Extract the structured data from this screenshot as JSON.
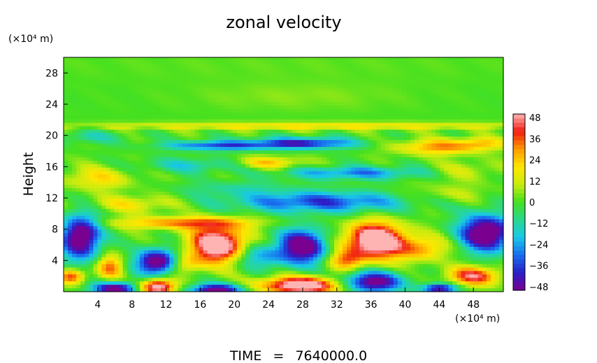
{
  "chart_data": {
    "type": "heatmap",
    "title": "zonal velocity",
    "ylabel": "Height",
    "xunit": "(×10⁴ m)",
    "yunit": "(×10⁴ m)",
    "xlim": [
      0,
      51.5
    ],
    "ylim": [
      0,
      30
    ],
    "xticks": [
      4,
      8,
      12,
      16,
      20,
      24,
      28,
      32,
      36,
      40,
      44,
      48
    ],
    "yticks": [
      4,
      8,
      12,
      16,
      20,
      24,
      28
    ],
    "colorbar": {
      "range": [
        -50,
        50
      ],
      "ticks": [
        48,
        36,
        24,
        12,
        0,
        -12,
        -24,
        -36,
        -48
      ],
      "colors": [
        "#7a0090",
        "#2a1fc8",
        "#1a6ef0",
        "#18c8e8",
        "#28d890",
        "#44e020",
        "#c8ec10",
        "#ffe600",
        "#ff9a00",
        "#f01c10",
        "#ffb4b4"
      ]
    },
    "features": [
      {
        "x": 25,
        "y": 29,
        "sx": 30,
        "sy": 2.0,
        "v": 2
      },
      {
        "x": 27,
        "y": 25,
        "sx": 12,
        "sy": 1.8,
        "v": 5
      },
      {
        "x": 30,
        "y": 21.2,
        "sx": 28,
        "sy": 0.5,
        "v": 20
      },
      {
        "x": 28,
        "y": 19.0,
        "sx": 6,
        "sy": 0.7,
        "v": -42
      },
      {
        "x": 18,
        "y": 18.7,
        "sx": 6,
        "sy": 0.6,
        "v": -34
      },
      {
        "x": 3,
        "y": 19.8,
        "sx": 4,
        "sy": 0.8,
        "v": -12
      },
      {
        "x": 44,
        "y": 18.5,
        "sx": 5,
        "sy": 1.0,
        "v": 30
      },
      {
        "x": 49,
        "y": 19,
        "sx": 3,
        "sy": 0.8,
        "v": 18
      },
      {
        "x": 24,
        "y": 16.5,
        "sx": 4,
        "sy": 0.8,
        "v": 24
      },
      {
        "x": 34,
        "y": 15.2,
        "sx": 8,
        "sy": 0.8,
        "v": -28
      },
      {
        "x": 15,
        "y": 16.2,
        "sx": 6,
        "sy": 0.9,
        "v": -16
      },
      {
        "x": 47,
        "y": 15.5,
        "sx": 4,
        "sy": 1.2,
        "v": 12
      },
      {
        "x": 4,
        "y": 14.5,
        "sx": 4,
        "sy": 1.5,
        "v": 20
      },
      {
        "x": 30,
        "y": 11.5,
        "sx": 10,
        "sy": 1.3,
        "v": -36
      },
      {
        "x": 8,
        "y": 11.2,
        "sx": 5,
        "sy": 1.1,
        "v": 18
      },
      {
        "x": 45,
        "y": 12.5,
        "sx": 5,
        "sy": 1.3,
        "v": 10
      },
      {
        "x": 20,
        "y": 13.2,
        "sx": 6,
        "sy": 1.0,
        "v": -10
      },
      {
        "x": 14,
        "y": 8.8,
        "sx": 8,
        "sy": 0.8,
        "v": 32
      },
      {
        "x": 2,
        "y": 7,
        "sx": 2.2,
        "sy": 2.8,
        "v": -62
      },
      {
        "x": 18,
        "y": 6,
        "sx": 3.2,
        "sy": 2.3,
        "v": 66
      },
      {
        "x": 11,
        "y": 3.8,
        "sx": 2.4,
        "sy": 1.6,
        "v": -60
      },
      {
        "x": 28,
        "y": 5.8,
        "sx": 2.8,
        "sy": 2.2,
        "v": -58
      },
      {
        "x": 36.5,
        "y": 6.5,
        "sx": 3.5,
        "sy": 2.3,
        "v": 68
      },
      {
        "x": 49.5,
        "y": 7.5,
        "sx": 3.0,
        "sy": 2.3,
        "v": -64
      },
      {
        "x": 42,
        "y": 5.5,
        "sx": 3,
        "sy": 1.6,
        "v": 26
      },
      {
        "x": 5.5,
        "y": 3.2,
        "sx": 1.5,
        "sy": 1.5,
        "v": 34
      },
      {
        "x": 11,
        "y": 0.6,
        "sx": 2.0,
        "sy": 1.0,
        "v": 58
      },
      {
        "x": 6,
        "y": 0.4,
        "sx": 2.5,
        "sy": 0.8,
        "v": -56
      },
      {
        "x": 18,
        "y": 0.2,
        "sx": 3,
        "sy": 0.8,
        "v": -56
      },
      {
        "x": 28,
        "y": 0.8,
        "sx": 5,
        "sy": 1.1,
        "v": 62
      },
      {
        "x": 36,
        "y": 1.2,
        "sx": 3.5,
        "sy": 1.3,
        "v": -58
      },
      {
        "x": 48,
        "y": 2.0,
        "sx": 3,
        "sy": 1.2,
        "v": 44
      },
      {
        "x": 44,
        "y": 0.4,
        "sx": 2,
        "sy": 0.6,
        "v": -50
      },
      {
        "x": 23,
        "y": 4.5,
        "sx": 3,
        "sy": 1.5,
        "v": -24
      },
      {
        "x": 33,
        "y": 4,
        "sx": 2,
        "sy": 1.2,
        "v": 30
      },
      {
        "x": 14,
        "y": 3.5,
        "sx": 2,
        "sy": 1.2,
        "v": 24
      },
      {
        "x": 1,
        "y": 2.0,
        "sx": 1.5,
        "sy": 1.0,
        "v": 40
      }
    ]
  },
  "footer": {
    "time_label": "TIME",
    "eq": "=",
    "time_value": "7640000.0"
  }
}
